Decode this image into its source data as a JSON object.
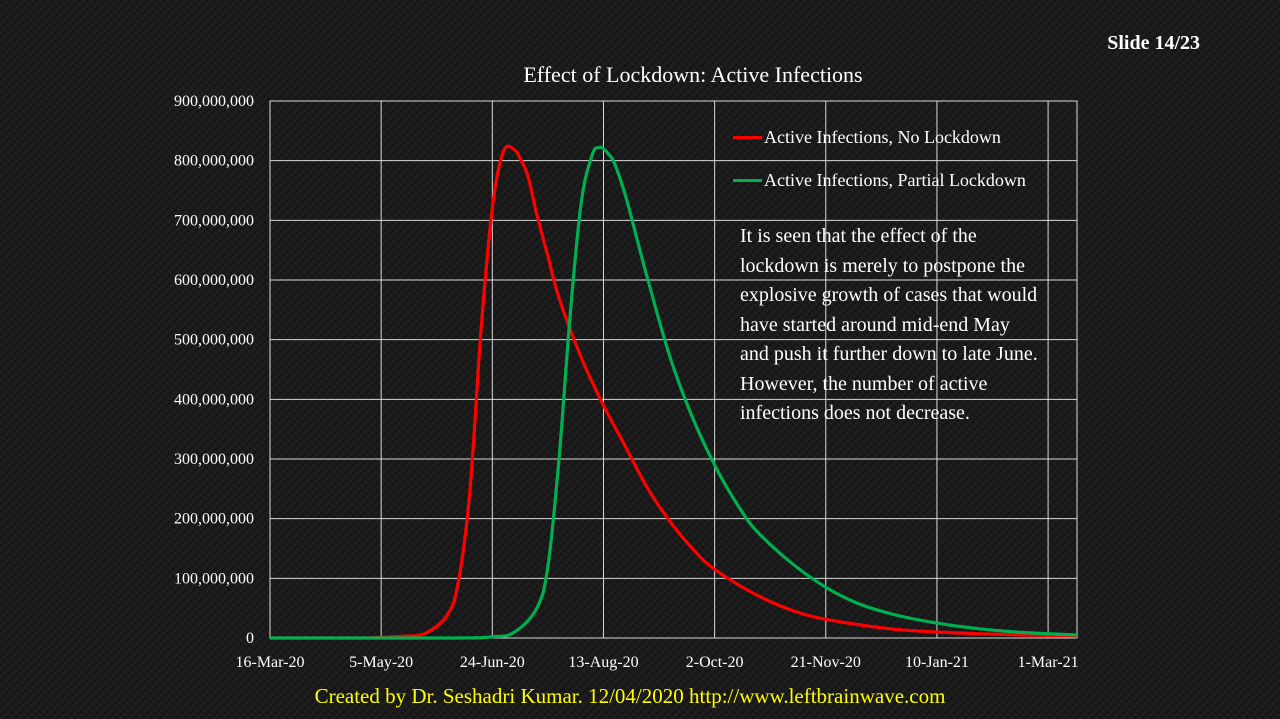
{
  "slide": {
    "number_label": "Slide 14/23"
  },
  "credit": {
    "text": "Created by Dr. Seshadri Kumar. 12/04/2020 http://www.leftbrainwave.com"
  },
  "annotation": {
    "text": "It is seen that the effect of the lockdown is merely to postpone the explosive growth of cases that would have started around mid-end May and push it further down to late June. However, the number of active infections does not decrease."
  },
  "chart_data": {
    "type": "line",
    "title": "Effect of Lockdown: Active Infections",
    "xlabel": "",
    "ylabel": "",
    "x_tick_labels": [
      "16-Mar-20",
      "5-May-20",
      "24-Jun-20",
      "13-Aug-20",
      "2-Oct-20",
      "21-Nov-20",
      "10-Jan-21",
      "1-Mar-21"
    ],
    "x_tick_days": [
      0,
      50,
      100,
      150,
      200,
      250,
      300,
      350
    ],
    "xlim_days_from_start": [
      0,
      363
    ],
    "y_tick_labels": [
      "0",
      "100,000,000",
      "200,000,000",
      "300,000,000",
      "400,000,000",
      "500,000,000",
      "600,000,000",
      "700,000,000",
      "800,000,000",
      "900,000,000"
    ],
    "ylim": [
      0,
      900000000
    ],
    "grid": true,
    "legend_position": "top-right",
    "series": [
      {
        "name": "Active Infections, No Lockdown",
        "color": "#ff0000",
        "x_days": [
          0,
          40,
          50,
          60,
          70,
          80,
          85,
          90,
          95,
          100,
          105,
          110,
          113,
          115,
          117,
          120,
          125,
          130,
          140,
          150,
          160,
          170,
          180,
          190,
          200,
          220,
          240,
          260,
          280,
          300,
          320,
          340,
          363
        ],
        "values": [
          0,
          0,
          1000000,
          3000000,
          8000000,
          40000000,
          100000000,
          250000000,
          520000000,
          720000000,
          815000000,
          818000000,
          800000000,
          785000000,
          760000000,
          710000000,
          640000000,
          570000000,
          470000000,
          390000000,
          320000000,
          250000000,
          195000000,
          150000000,
          115000000,
          70000000,
          40000000,
          25000000,
          15000000,
          10000000,
          7000000,
          5000000,
          3000000
        ]
      },
      {
        "name": "Active Infections, Partial Lockdown",
        "color": "#00b050",
        "x_days": [
          0,
          80,
          100,
          110,
          120,
          125,
          130,
          135,
          140,
          145,
          148,
          150,
          152,
          155,
          160,
          165,
          170,
          180,
          190,
          200,
          210,
          220,
          240,
          260,
          280,
          300,
          320,
          340,
          363
        ],
        "values": [
          0,
          0,
          2000000,
          10000000,
          50000000,
          120000000,
          300000000,
          540000000,
          730000000,
          810000000,
          822000000,
          820000000,
          812000000,
          795000000,
          740000000,
          670000000,
          600000000,
          470000000,
          370000000,
          290000000,
          225000000,
          175000000,
          110000000,
          65000000,
          40000000,
          25000000,
          15000000,
          9000000,
          5000000
        ]
      }
    ]
  }
}
